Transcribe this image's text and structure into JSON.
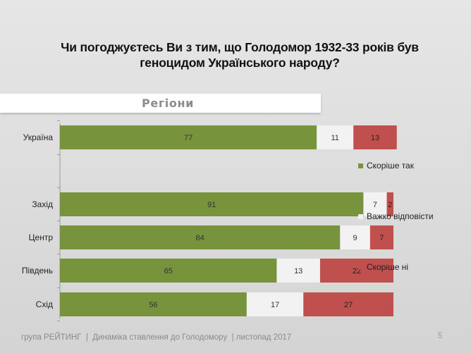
{
  "title": "Чи погоджуєтесь Ви з тим, що Голодомор 1932-33 років був геноцидом Українського народу?",
  "section_label": "Регіони",
  "footer": "група РЕЙТИНГ  |  Динаміка ставлення до Голодомору  | листопад 2017",
  "page_number": "5",
  "colors": {
    "yes": "#77933c",
    "hard": "#f2f2f2",
    "no": "#c0504d"
  },
  "chart_data": {
    "type": "bar",
    "orientation": "horizontal",
    "stacked": true,
    "categories": [
      "Україна",
      "",
      "Захід",
      "Центр",
      "Південь",
      "Схід"
    ],
    "series": [
      {
        "name": "Скоріше так",
        "values": [
          77,
          null,
          91,
          84,
          65,
          56
        ]
      },
      {
        "name": "Важко відповісти",
        "values": [
          11,
          null,
          7,
          9,
          13,
          17
        ]
      },
      {
        "name": "Скоріше ні",
        "values": [
          13,
          null,
          2,
          7,
          22,
          27
        ]
      }
    ],
    "xlim": [
      0,
      100
    ],
    "grid": false,
    "legend_position": "right"
  }
}
